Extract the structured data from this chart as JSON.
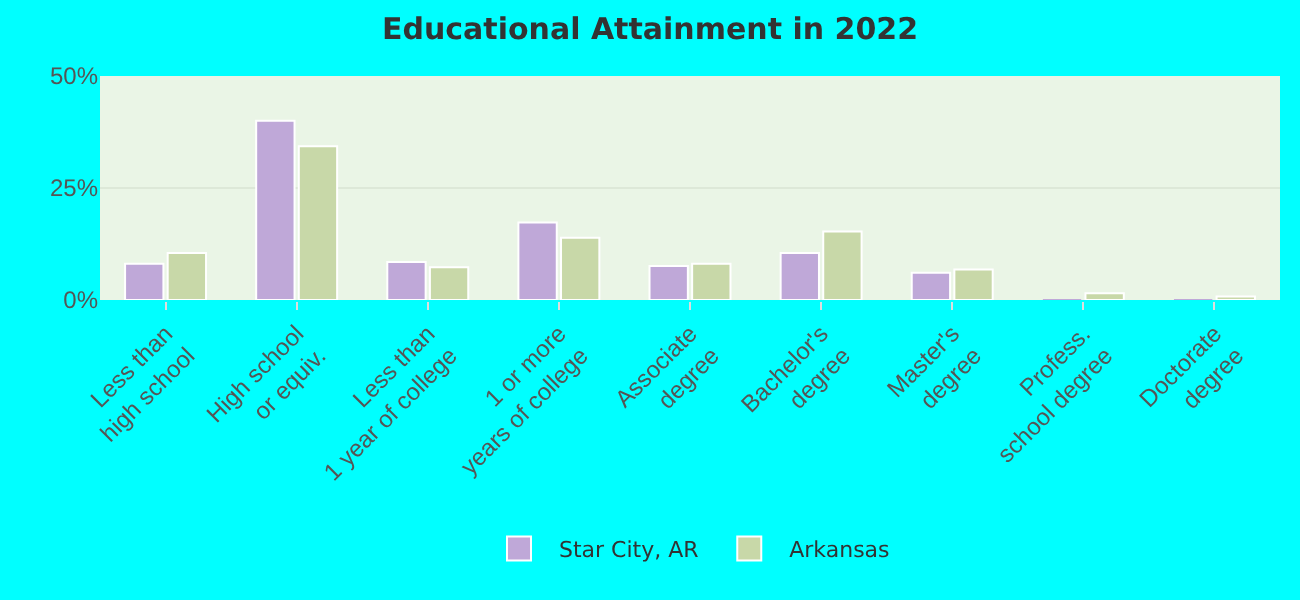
{
  "chart_data": {
    "type": "bar",
    "title": "Educational Attainment in 2022",
    "categories": [
      "Less than\nhigh school",
      "High school\nor equiv.",
      "Less than\n1 year of college",
      "1 or more\nyears of college",
      "Associate\ndegree",
      "Bachelor's\ndegree",
      "Master's\ndegree",
      "Profess.\nschool degree",
      "Doctorate\ndegree"
    ],
    "series": [
      {
        "name": "Star City, AR",
        "color": "#bfa8d8",
        "values": [
          8.1,
          40,
          8.5,
          17.3,
          7.6,
          10.5,
          6.1,
          0,
          0
        ]
      },
      {
        "name": "Arkansas",
        "color": "#c8d8a8",
        "values": [
          10.5,
          34.3,
          7.3,
          13.9,
          8.1,
          15.3,
          6.8,
          1.5,
          0.8
        ]
      }
    ],
    "ylim": [
      0,
      50
    ],
    "yticks": [
      {
        "value": 0,
        "label": "0%"
      },
      {
        "value": 25,
        "label": "25%"
      },
      {
        "value": 50,
        "label": "50%"
      }
    ],
    "grid": "y",
    "legend": "bottom"
  }
}
